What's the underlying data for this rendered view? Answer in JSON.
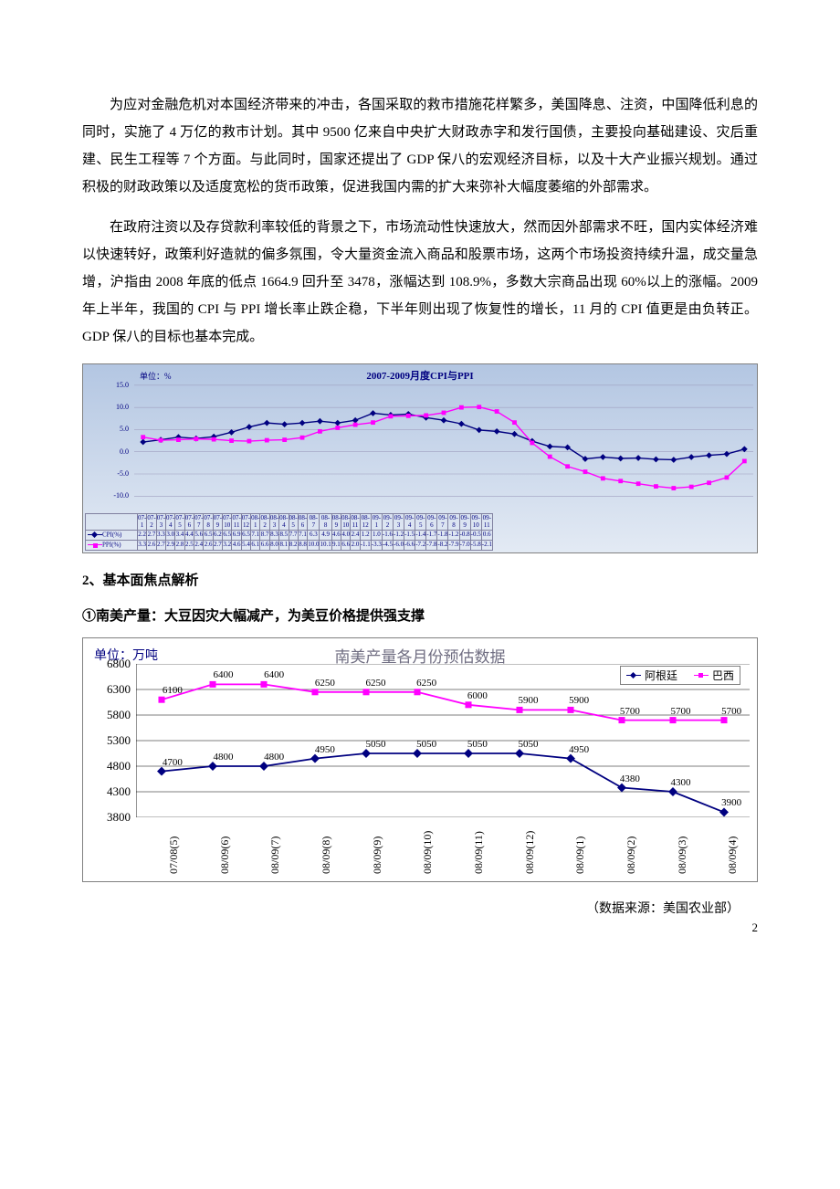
{
  "paragraphs": {
    "p1": "为应对金融危机对本国经济带来的冲击，各国采取的救市措施花样繁多，美国降息、注资，中国降低利息的同时，实施了 4 万亿的救市计划。其中 9500 亿来自中央扩大财政赤字和发行国债，主要投向基础建设、灾后重建、民生工程等 7 个方面。与此同时，国家还提出了 GDP 保八的宏观经济目标，以及十大产业振兴规划。通过积极的财政政策以及适度宽松的货币政策，促进我国内需的扩大来弥补大幅度萎缩的外部需求。",
    "p2": "在政府注资以及存贷款利率较低的背景之下，市场流动性快速放大，然而因外部需求不旺，国内实体经济难以快速转好，政策利好造就的偏多氛围，令大量资金流入商品和股票市场，这两个市场投资持续升温，成交量急增，沪指由 2008 年底的低点 1664.9 回升至 3478，涨幅达到 108.9%，多数大宗商品出现 60%以上的涨幅。2009 年上半年，我国的 CPI 与 PPI 增长率止跌企稳，下半年则出现了恢复性的增长，11 月的 CPI 值更是由负转正。GDP 保八的目标也基本完成。"
  },
  "section2": "2、基本面焦点解析",
  "section2sub": "①南美产量：大豆因灾大幅减产，为美豆价格提供强支撑",
  "data_source": "（数据来源：美国农业部）",
  "page_number": "2",
  "chart1": {
    "unit": "单位：%",
    "title": "2007-2009月度CPI与PPI",
    "yticks": [
      15.0,
      10.0,
      5.0,
      0.0,
      -5.0,
      -10.0
    ],
    "ylim": [
      -12,
      16
    ],
    "colors": {
      "cpi": "#000080",
      "ppi": "#ff00ff",
      "grid": "#a0a0c0"
    },
    "periods": [
      "07-1",
      "07-2",
      "07-3",
      "07-4",
      "07-5",
      "07-6",
      "07-7",
      "07-8",
      "07-9",
      "07-10",
      "07-11",
      "07-12",
      "08-1",
      "08-2",
      "08-3",
      "08-4",
      "08-5",
      "08-6",
      "08-7",
      "08-8",
      "08-9",
      "08-10",
      "08-11",
      "08-12",
      "09-1",
      "09-2",
      "09-3",
      "09-4",
      "09-5",
      "09-6",
      "09-7",
      "09-8",
      "09-9",
      "09-10",
      "09-11"
    ],
    "cpi": [
      2.2,
      2.7,
      3.3,
      3.0,
      3.4,
      4.4,
      5.6,
      6.5,
      6.2,
      6.5,
      6.9,
      6.5,
      7.1,
      8.7,
      8.3,
      8.5,
      7.7,
      7.1,
      6.3,
      4.9,
      4.6,
      4.0,
      2.4,
      1.2,
      1.0,
      -1.6,
      -1.2,
      -1.5,
      -1.4,
      -1.7,
      -1.8,
      -1.2,
      -0.8,
      -0.5,
      0.6
    ],
    "ppi": [
      3.3,
      2.6,
      2.7,
      2.9,
      2.8,
      2.5,
      2.4,
      2.6,
      2.7,
      3.2,
      4.6,
      5.4,
      6.1,
      6.6,
      8.0,
      8.1,
      8.2,
      8.8,
      10.0,
      10.1,
      9.1,
      6.6,
      2.0,
      -1.1,
      -3.3,
      -4.5,
      -6.0,
      -6.6,
      -7.2,
      -7.8,
      -8.2,
      -7.9,
      -7.0,
      -5.8,
      -2.1
    ],
    "legend": {
      "cpi": "CPI(%)",
      "ppi": "PPI(%)"
    }
  },
  "chart2": {
    "unit": "单位：万吨",
    "title": "南美产量各月份预估数据",
    "legend": {
      "s1": "阿根廷",
      "s2": "巴西"
    },
    "colors": {
      "s1": "#000080",
      "s2": "#ff00ff",
      "grid": "#000000"
    },
    "yticks": [
      6800,
      6300,
      5800,
      5300,
      4800,
      4300,
      3800
    ],
    "ylim": [
      3800,
      6800
    ],
    "x": [
      "07/08(5)",
      "08/09(6)",
      "08/09(7)",
      "08/09(8)",
      "08/09(9)",
      "08/09(10)",
      "08/09(11)",
      "08/09(12)",
      "08/09(1)",
      "08/09(2)",
      "08/09(3)",
      "08/09(4)"
    ],
    "s1": [
      4700,
      4800,
      4800,
      4950,
      5050,
      5050,
      5050,
      5050,
      4950,
      4380,
      4300,
      3900
    ],
    "s2": [
      6100,
      6400,
      6400,
      6250,
      6250,
      6250,
      6000,
      5900,
      5900,
      5700,
      5700,
      5700
    ],
    "s1lbl": [
      "4700",
      "4800",
      "4800",
      "4950",
      "5050",
      "5050",
      "5050",
      "5050",
      "4950",
      "4380",
      "4300",
      "3900"
    ],
    "s2lbl": [
      "6100",
      "6400",
      "6400",
      "6250",
      "6250",
      "6250",
      "6000",
      "5900",
      "5900",
      "5700",
      "5700",
      "5700"
    ]
  }
}
